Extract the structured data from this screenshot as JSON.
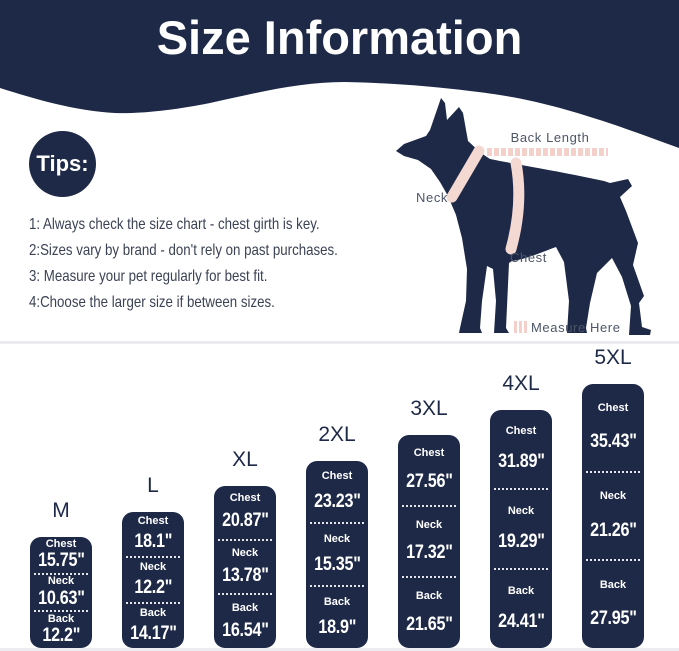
{
  "title": "Size Information",
  "colors": {
    "navy": "#1e2947",
    "pink_strap": "#f4d8d2",
    "pink_tape": "#f3d0ca",
    "label_gray": "#4d5568",
    "tips_text": "#3b4254",
    "divider": "#eaeaef"
  },
  "tips": {
    "badge_label": "Tips:",
    "items": [
      "1: Always check the size chart - chest girth is key.",
      "2:Sizes vary by brand - don't rely on past purchases.",
      "3: Measure your pet regularly for best fit.",
      "4:Choose the larger size if between sizes."
    ]
  },
  "diagram": {
    "back_length_label": "Back Length",
    "neck_label": "Neck",
    "chest_label": "Chest",
    "measure_here_label": "Measure Here"
  },
  "chart_data": {
    "type": "bar",
    "categories": [
      "M",
      "L",
      "XL",
      "2XL",
      "3XL",
      "4XL",
      "5XL"
    ],
    "unit": "\"",
    "series": [
      {
        "name": "Chest",
        "values": [
          15.75,
          18.1,
          20.87,
          23.23,
          27.56,
          31.89,
          35.43
        ]
      },
      {
        "name": "Neck",
        "values": [
          10.63,
          12.2,
          13.78,
          15.35,
          17.32,
          19.29,
          21.26
        ]
      },
      {
        "name": "Back",
        "values": [
          12.2,
          14.17,
          16.54,
          18.9,
          21.65,
          24.41,
          27.95
        ]
      }
    ],
    "layout_note": "bars grow taller from M to 5XL, measurements listed top-to-bottom: Chest, Neck, Back"
  }
}
